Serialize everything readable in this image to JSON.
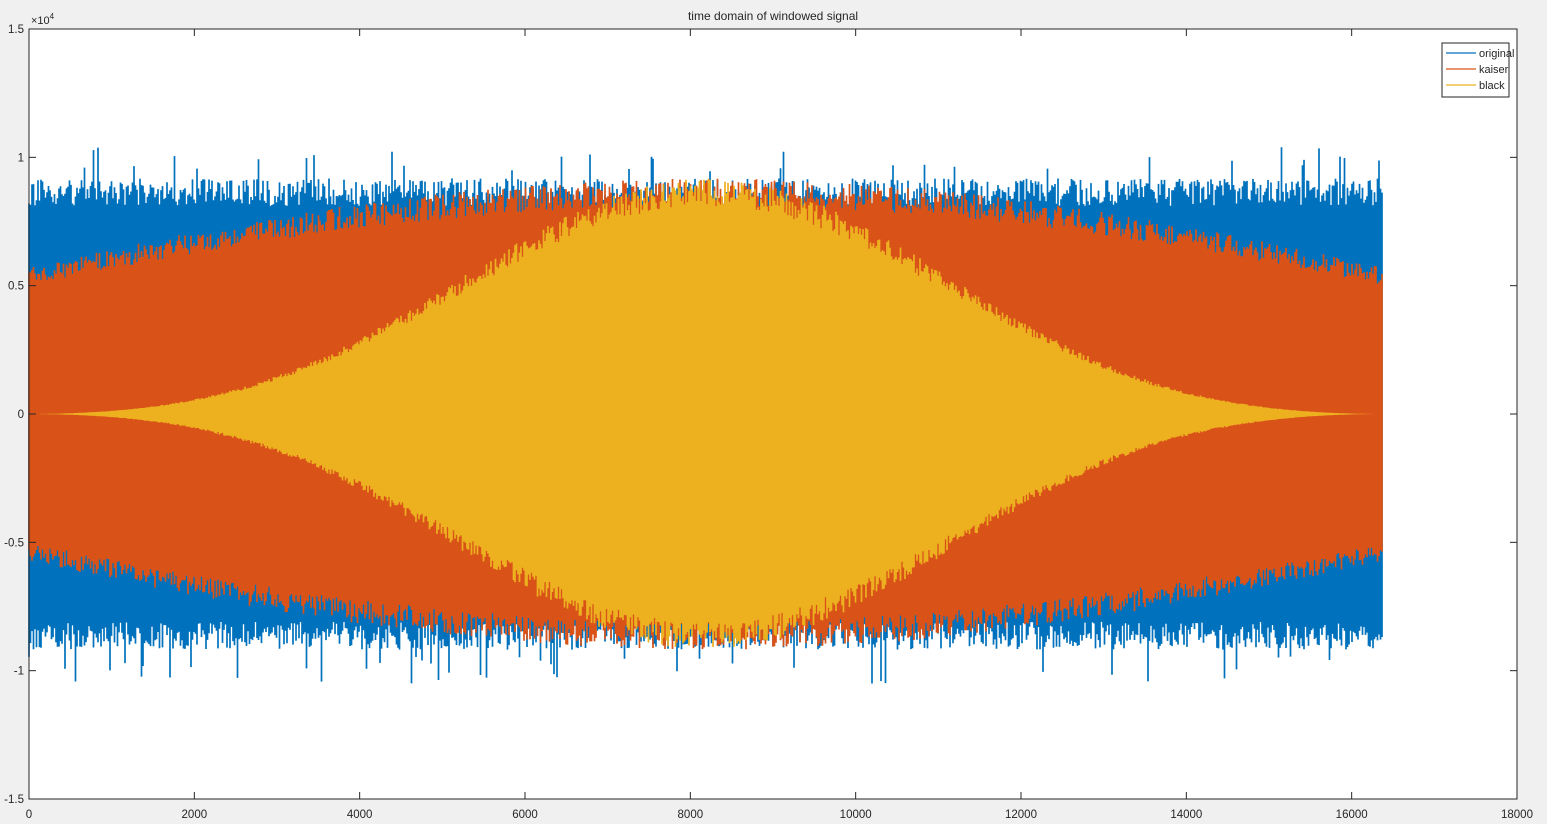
{
  "figure": {
    "background": "#f0f0f0"
  },
  "chart_data": {
    "type": "line",
    "title": "time domain of windowed signal",
    "xlabel": "",
    "ylabel": "",
    "xlim": [
      0,
      18000
    ],
    "ylim": [
      -15000,
      15000
    ],
    "x_ticks": [
      0,
      2000,
      4000,
      6000,
      8000,
      10000,
      12000,
      14000,
      16000,
      18000
    ],
    "x_tick_labels": [
      "0",
      "2000",
      "4000",
      "6000",
      "8000",
      "10000",
      "12000",
      "14000",
      "16000",
      "18000"
    ],
    "y_ticks": [
      -15000,
      -10000,
      -5000,
      0,
      5000,
      10000,
      15000
    ],
    "y_tick_labels": [
      "-1.5",
      "-1",
      "-0.5",
      "0",
      "0.5",
      "1",
      "1.5"
    ],
    "y_exponent_base": "×10",
    "y_exponent_power": "4",
    "grid": false,
    "legend_position": "top-right",
    "signal_length": 16384,
    "series": [
      {
        "name": "original",
        "color": "#0072bd",
        "envelope": "constant",
        "peak": 9000,
        "max_abs": 10500
      },
      {
        "name": "kaiser",
        "color": "#d95319",
        "envelope": "kaiser",
        "peak": 9000,
        "edge_fraction": 0.44
      },
      {
        "name": "black",
        "color": "#edb120",
        "envelope": "blackman",
        "peak": 9000
      }
    ]
  }
}
